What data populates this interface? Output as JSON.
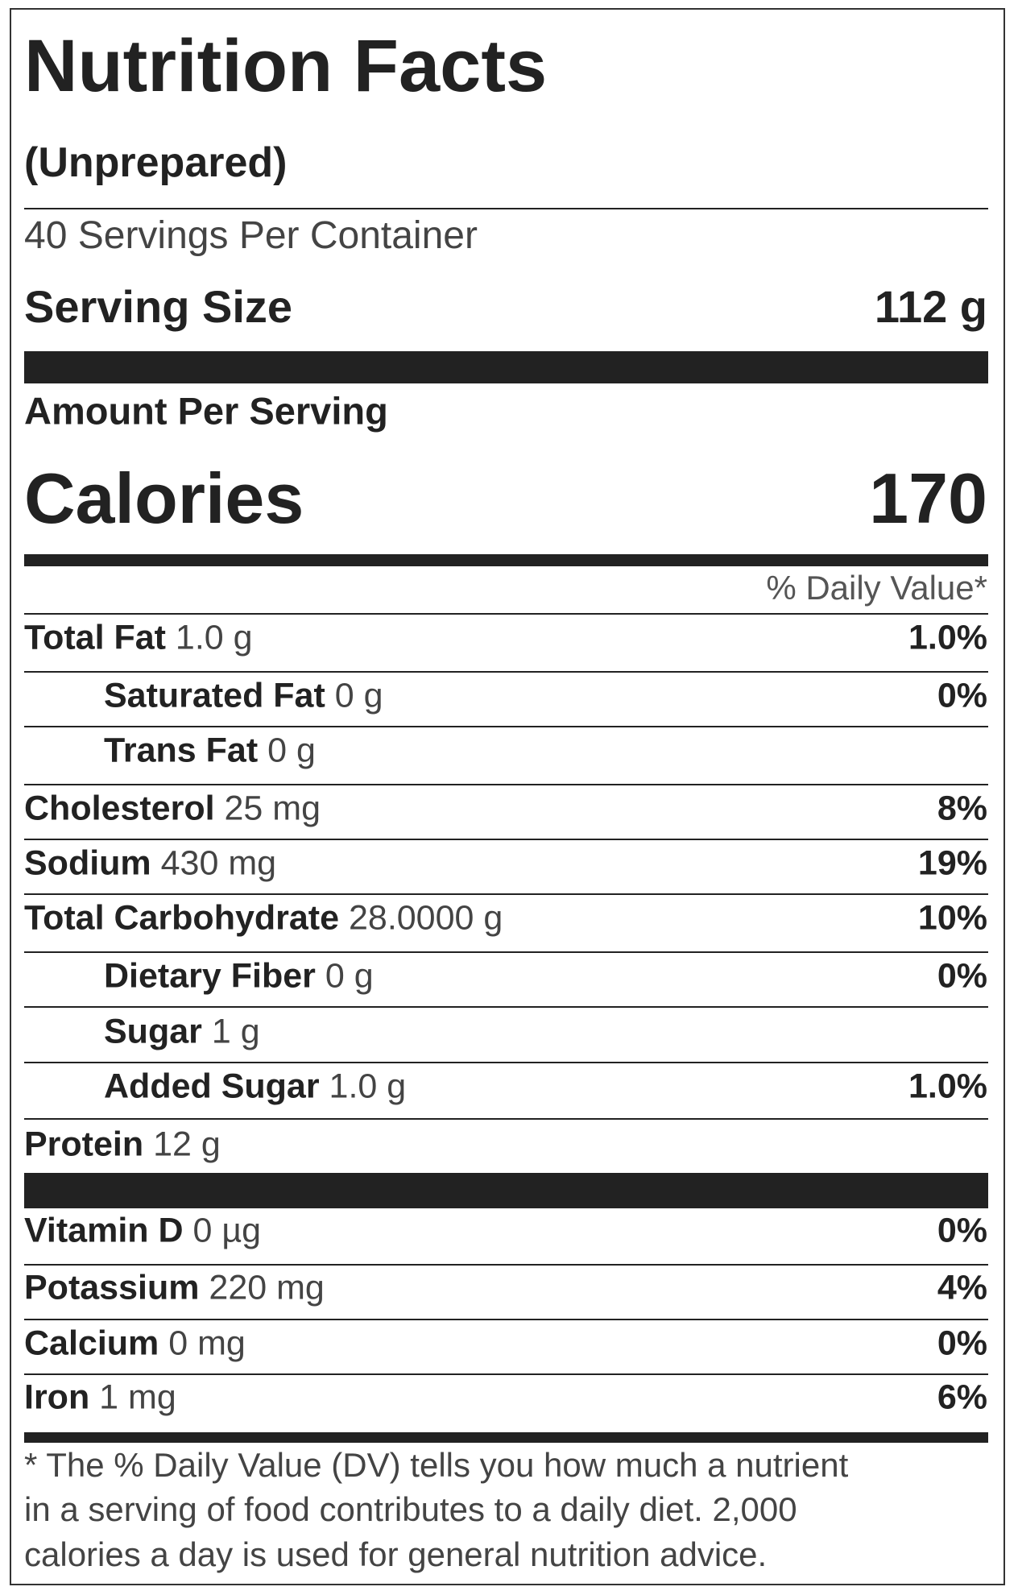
{
  "header": {
    "title": "Nutrition Facts",
    "subtitle": "(Unprepared)",
    "servings": "40 Servings Per Container",
    "serving_size_label": "Serving Size",
    "serving_size_value": "112 g",
    "amount_label": "Amount Per Serving",
    "calories_label": "Calories",
    "calories_value": "170",
    "dv_header": "% Daily Value*"
  },
  "nutrients": [
    {
      "name": "Total Fat",
      "amount": "1.0 g",
      "dv": "1.0%"
    },
    {
      "name": "Saturated Fat",
      "amount": "0 g",
      "dv": "0%",
      "indent": true
    },
    {
      "name": "Trans Fat",
      "amount": "0 g",
      "indent": true
    },
    {
      "name": "Cholesterol",
      "amount": "25 mg",
      "dv": "8%"
    },
    {
      "name": "Sodium",
      "amount": "430 mg",
      "dv": "19%"
    },
    {
      "name": "Total Carbohydrate",
      "amount": "28.0000 g",
      "dv": "10%"
    },
    {
      "name": "Dietary Fiber",
      "amount": "0 g",
      "dv": "0%",
      "indent": true
    },
    {
      "name": "Sugar",
      "amount": "1 g",
      "indent": true
    },
    {
      "name": "Added Sugar",
      "amount": "1.0 g",
      "dv": "1.0%",
      "indent": true
    },
    {
      "name": "Protein",
      "amount": "12 g"
    }
  ],
  "vitamins": [
    {
      "name": "Vitamin D",
      "amount": "0 µg",
      "dv": "0%"
    },
    {
      "name": "Potassium",
      "amount": "220 mg",
      "dv": "4%"
    },
    {
      "name": "Calcium",
      "amount": "0 mg",
      "dv": "0%"
    },
    {
      "name": "Iron",
      "amount": "1 mg",
      "dv": "6%"
    }
  ],
  "footnote": [
    "* The % Daily Value (DV) tells you how much a nutrient",
    "in a serving of food contributes to a daily diet. 2,000",
    "calories a day is used for general nutrition advice."
  ]
}
